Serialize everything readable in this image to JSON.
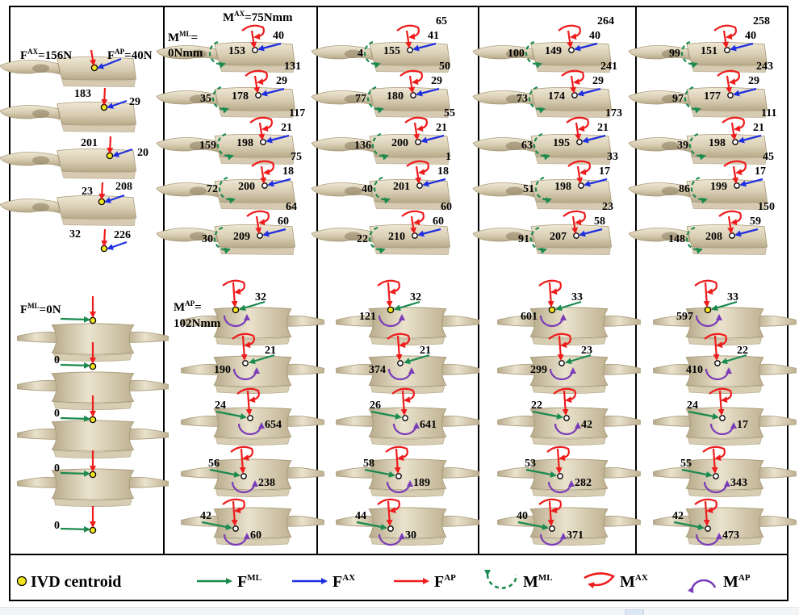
{
  "top_labels": {
    "f_ax": "F<sup>AX</sup>=156N",
    "f_ap": "F<sup>AP</sup>=40N",
    "m_ax": "M<sup>AX</sup>=75Nmm",
    "m_ml": "M<sup>ML</sup>=",
    "m_ml_val": "0Nmm",
    "f_ml": "F<sup>ML</sup>=0N",
    "m_ap": "M<sup>AP</sup>=",
    "m_ap_val": "102Nmm"
  },
  "legend": {
    "centroid": "IVD centroid",
    "fml": "F<sup>ML</sup>",
    "fax": "F<sup>AX</sup>",
    "fap": "F<sup>AP</sup>",
    "mml": "M<sup>ML</sup>",
    "max": "M<sup>AX</sup>",
    "map": "M<sup>AP</sup>"
  },
  "colors": {
    "green": "#1a8a4e",
    "blue": "#1f2fe0",
    "red": "#ee1c1c",
    "purple": "#7a3db8",
    "centroid": "#f2e51f",
    "bone": "#d8cdb3"
  },
  "panels": [
    {
      "id": "p1",
      "top": [
        {
          "fax": "183",
          "fap": "29"
        },
        {
          "fax": "201",
          "fap": "20"
        },
        {
          "fax": "208",
          "fap": "23"
        },
        {
          "fax": "226",
          "fap": "32"
        }
      ],
      "bottom": [
        "0",
        "0",
        "0",
        "0"
      ]
    },
    {
      "id": "p2",
      "top": [
        {
          "max": "",
          "fax": "153",
          "fap": "40",
          "mml": ""
        },
        {
          "max": "131",
          "fax": "178",
          "fap": "29",
          "mml": "35"
        },
        {
          "max": "117",
          "fax": "198",
          "fap": "21",
          "mml": "159"
        },
        {
          "max": "75",
          "fax": "200",
          "fap": "18",
          "mml": "72"
        },
        {
          "max": "64",
          "fax": "209",
          "fap": "60",
          "mml": "30"
        }
      ],
      "bottom": [
        {
          "fml": "32",
          "map": ""
        },
        {
          "fml": "21",
          "map": "190"
        },
        {
          "fml": "24",
          "map": "654"
        },
        {
          "fml": "56",
          "map": "238"
        },
        {
          "fml": "42",
          "map": "60"
        }
      ]
    },
    {
      "id": "p3",
      "top": [
        {
          "max": "65",
          "fax": "155",
          "fap": "41",
          "mml": "4"
        },
        {
          "max": "50",
          "fax": "180",
          "fap": "29",
          "mml": "77"
        },
        {
          "max": "55",
          "fax": "200",
          "fap": "21",
          "mml": "136"
        },
        {
          "max": "1",
          "fax": "201",
          "fap": "18",
          "mml": "40"
        },
        {
          "max": "60",
          "fax": "210",
          "fap": "60",
          "mml": "22"
        }
      ],
      "bottom": [
        {
          "fml": "32",
          "map": "121"
        },
        {
          "fml": "21",
          "map": "374"
        },
        {
          "fml": "26",
          "map": "641"
        },
        {
          "fml": "58",
          "map": "189"
        },
        {
          "fml": "44",
          "map": "30"
        }
      ]
    },
    {
      "id": "p4",
      "top": [
        {
          "max": "264",
          "fax": "149",
          "fap": "40",
          "mml": "100"
        },
        {
          "max": "241",
          "fax": "174",
          "fap": "29",
          "mml": "73"
        },
        {
          "max": "173",
          "fax": "195",
          "fap": "21",
          "mml": "63"
        },
        {
          "max": "33",
          "fax": "198",
          "fap": "17",
          "mml": "51"
        },
        {
          "max": "23",
          "fax": "207",
          "fap": "58",
          "mml": "91"
        }
      ],
      "bottom": [
        {
          "fml": "33",
          "map": "601"
        },
        {
          "fml": "23",
          "map": "299"
        },
        {
          "fml": "22",
          "map": "42"
        },
        {
          "fml": "53",
          "map": "282"
        },
        {
          "fml": "40",
          "map": "371"
        }
      ]
    },
    {
      "id": "p5",
      "top": [
        {
          "max": "258",
          "fax": "151",
          "fap": "40",
          "mml": "99"
        },
        {
          "max": "243",
          "fax": "177",
          "fap": "29",
          "mml": "97"
        },
        {
          "max": "111",
          "fax": "198",
          "fap": "21",
          "mml": "39"
        },
        {
          "max": "45",
          "fax": "199",
          "fap": "17",
          "mml": "86"
        },
        {
          "max": "150",
          "fax": "208",
          "fap": "59",
          "mml": "148"
        }
      ],
      "bottom": [
        {
          "fml": "33",
          "map": "597"
        },
        {
          "fml": "22",
          "map": "410"
        },
        {
          "fml": "24",
          "map": "17"
        },
        {
          "fml": "55",
          "map": "343"
        },
        {
          "fml": "42",
          "map": "473"
        }
      ]
    }
  ]
}
